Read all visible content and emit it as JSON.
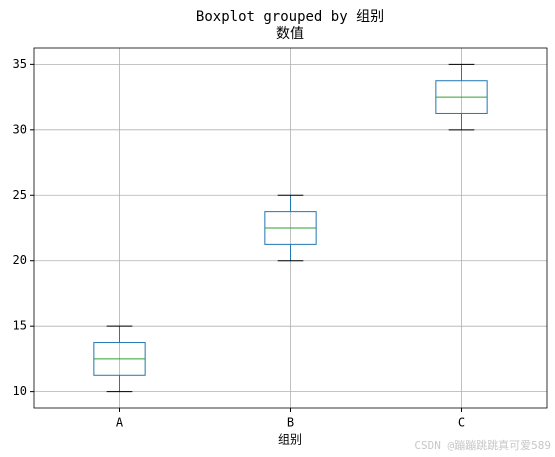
{
  "chart_data": {
    "type": "boxplot",
    "title": "Boxplot grouped by 组别",
    "subtitle": "数值",
    "x_label": "组别",
    "categories": [
      "A",
      "B",
      "C"
    ],
    "boxes": [
      {
        "min": 10,
        "q1": 11.25,
        "median": 12.5,
        "q3": 13.75,
        "max": 15
      },
      {
        "min": 20,
        "q1": 21.25,
        "median": 22.5,
        "q3": 23.75,
        "max": 25
      },
      {
        "min": 30,
        "q1": 31.25,
        "median": 32.5,
        "q3": 33.75,
        "max": 35
      }
    ],
    "box_color": "#1f77b4",
    "median_color": "#2ca02c",
    "whisker_color": "#000000",
    "ylim": [
      8.75,
      36.25
    ],
    "yticks": [
      10,
      15,
      20,
      25,
      30,
      35
    ],
    "grid": true
  },
  "watermark": "CSDN @蹦蹦跳跳真可爱589"
}
